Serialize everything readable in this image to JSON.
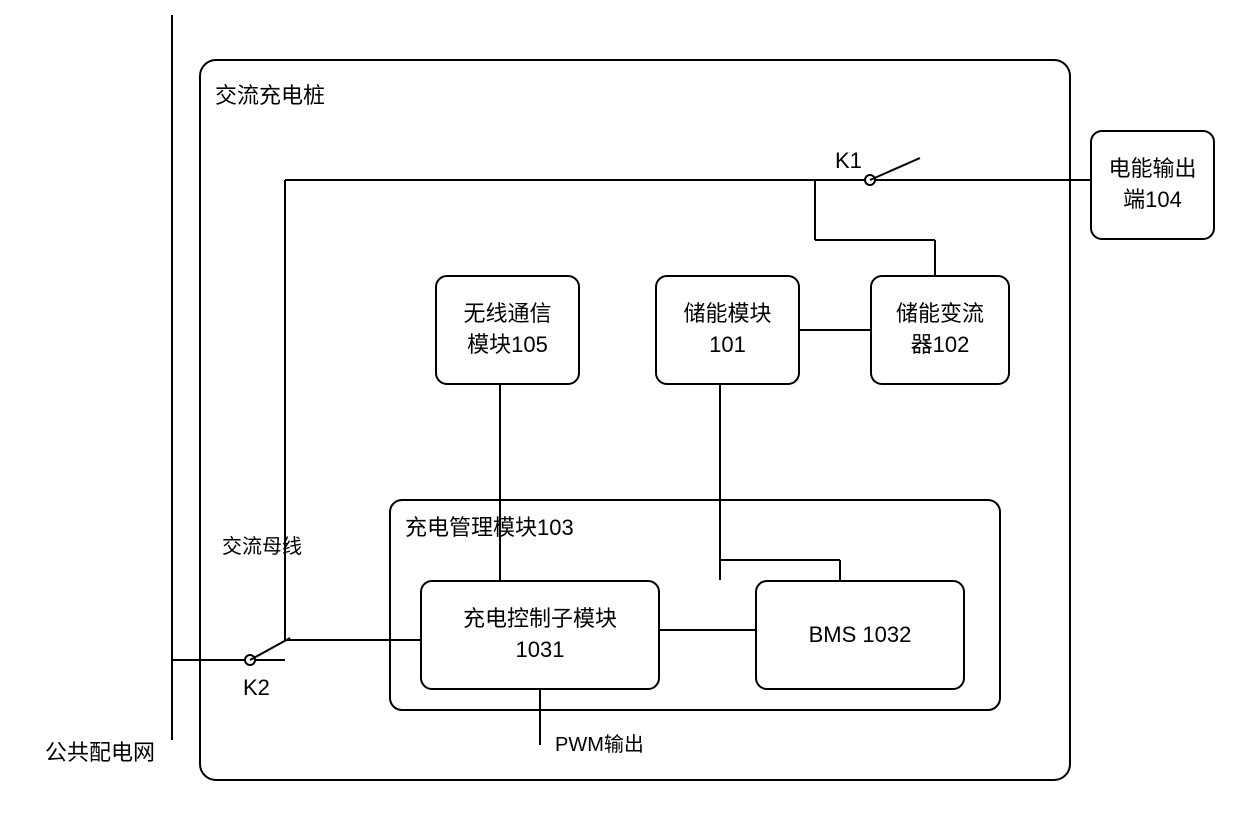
{
  "labels": {
    "public_grid": "公共配电网",
    "ac_bus": "交流母线",
    "k1": "K1",
    "k2": "K2",
    "pwm_output": "PWM输出",
    "ac_charging_pile": "交流充电桩",
    "charging_management": "充电管理模块103"
  },
  "boxes": {
    "wireless": "无线通信\n模块105",
    "energy_storage": "储能模块\n101",
    "energy_converter": "储能变流\n器102",
    "charging_control": "充电控制子模块\n1031",
    "bms": "BMS 1032",
    "power_output": "电能输出\n端104"
  },
  "colors": {
    "stroke": "#000000",
    "bg": "#ffffff"
  }
}
